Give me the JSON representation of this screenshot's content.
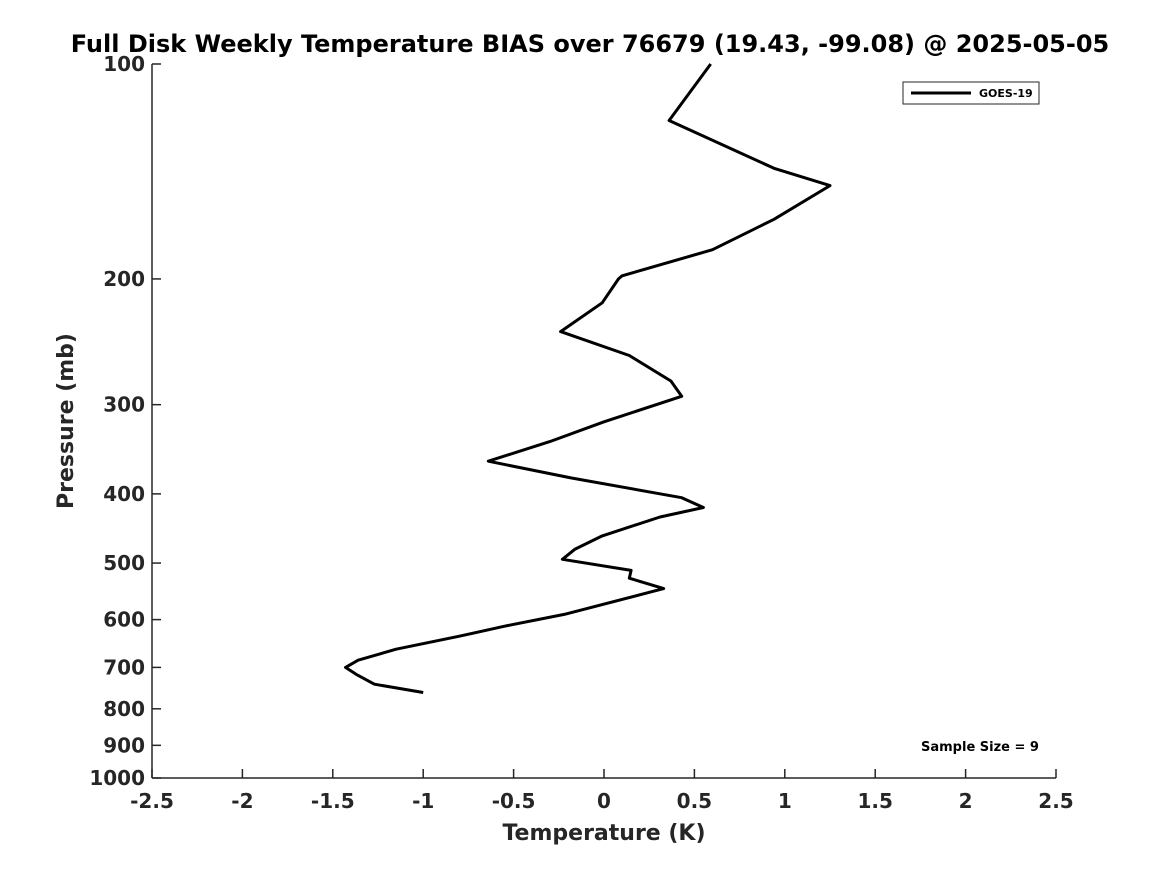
{
  "chart_data": {
    "type": "line",
    "title": "Full Disk Weekly Temperature BIAS over 76679 (19.43, -99.08) @ 2025-05-05",
    "xlabel": "Temperature (K)",
    "ylabel": "Pressure (mb)",
    "xlim": [
      -2.5,
      2.5
    ],
    "ylim": [
      100,
      1000
    ],
    "yscale": "log",
    "y_reversed": true,
    "x_ticks": [
      "-2.5",
      "-2",
      "-1.5",
      "-1",
      "-0.5",
      "0",
      "0.5",
      "1",
      "1.5",
      "2",
      "2.5"
    ],
    "y_ticks": [
      "100",
      "200",
      "300",
      "400",
      "500",
      "600",
      "700",
      "800",
      "900",
      "1000"
    ],
    "grid": false,
    "legend_position": "top-right",
    "line_color": "#000000",
    "series": [
      {
        "name": "GOES-19",
        "x": [
          0.59,
          0.36,
          0.94,
          1.25,
          0.94,
          0.6,
          0.1,
          0.08,
          -0.01,
          -0.24,
          0.14,
          0.37,
          0.43,
          0.0,
          -0.3,
          -0.64,
          -0.18,
          0.43,
          0.55,
          0.31,
          -0.01,
          -0.16,
          -0.23,
          0.15,
          0.14,
          0.33,
          -0.22,
          -0.55,
          -0.8,
          -1.15,
          -1.36,
          -1.43,
          -1.37,
          -1.27,
          -1.0
        ],
        "y": [
          100,
          120,
          140,
          148,
          165,
          182,
          198,
          200,
          216,
          237,
          256,
          278,
          292,
          317,
          338,
          360,
          380,
          405,
          418,
          431,
          458,
          478,
          494,
          512,
          525,
          543,
          590,
          613,
          633,
          660,
          684,
          700,
          716,
          739,
          759
        ]
      }
    ],
    "annotations": [
      "Sample Size = 9"
    ]
  }
}
